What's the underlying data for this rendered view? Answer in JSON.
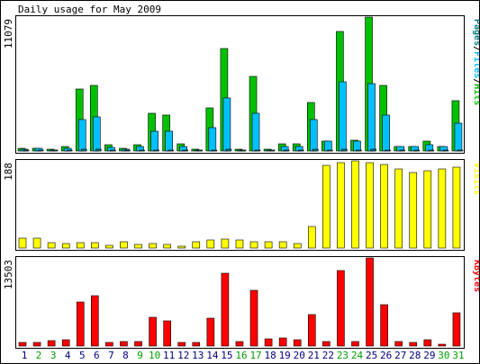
{
  "chart_data": {
    "type": "bar",
    "title": "Daily usage for May 2009",
    "categories": [
      "1",
      "2",
      "3",
      "4",
      "5",
      "6",
      "7",
      "8",
      "9",
      "10",
      "11",
      "12",
      "13",
      "14",
      "15",
      "16",
      "17",
      "18",
      "19",
      "20",
      "21",
      "22",
      "23",
      "24",
      "25",
      "26",
      "27",
      "28",
      "29",
      "30",
      "31"
    ],
    "weekend_days": [
      "2",
      "3",
      "9",
      "10",
      "16",
      "17",
      "23",
      "24",
      "30",
      "31"
    ],
    "colors": {
      "hits": "#00c000",
      "files": "#00c0ff",
      "pages": "#008080",
      "visits": "#ffff00",
      "kbytes": "#ff0000",
      "weekday_label": "#000080",
      "weekend_label": "#00a000",
      "frame": "#000000",
      "panel_border": "#000000"
    },
    "panels": [
      {
        "id": "hits",
        "label_parts": [
          {
            "text": "Pages",
            "color": "#008080"
          },
          {
            "text": "/",
            "color": "#000000"
          },
          {
            "text": "Files",
            "color": "#00c0ff"
          },
          {
            "text": "/",
            "color": "#000000"
          },
          {
            "text": "Hits",
            "color": "#00c000"
          }
        ],
        "max_label": "11079",
        "ylim": [
          0,
          11079
        ],
        "series": [
          {
            "name": "Hits",
            "color": "#00c000",
            "values": [
              200,
              250,
              120,
              400,
              5100,
              5400,
              550,
              250,
              550,
              3100,
              3000,
              600,
              120,
              3600,
              8500,
              150,
              6200,
              150,
              600,
              600,
              4000,
              850,
              9900,
              900,
              11079,
              5400,
              400,
              400,
              850,
              400,
              4200
            ]
          },
          {
            "name": "Files",
            "color": "#00c0ff",
            "values": [
              150,
              200,
              80,
              250,
              2600,
              2800,
              300,
              150,
              350,
              1600,
              1600,
              350,
              80,
              1900,
              4400,
              100,
              3100,
              100,
              350,
              350,
              2600,
              850,
              5700,
              850,
              5600,
              3000,
              400,
              400,
              550,
              400,
              2300
            ]
          },
          {
            "name": "Pages",
            "color": "#008080",
            "values": [
              50,
              60,
              30,
              60,
              120,
              130,
              80,
              40,
              60,
              100,
              90,
              70,
              30,
              90,
              150,
              40,
              110,
              40,
              80,
              70,
              120,
              80,
              150,
              90,
              160,
              110,
              80,
              80,
              90,
              80,
              110
            ]
          }
        ]
      },
      {
        "id": "visits",
        "label_parts": [
          {
            "text": "Visits",
            "color": "#ffff00"
          }
        ],
        "max_label": "188",
        "ylim": [
          0,
          188
        ],
        "series": [
          {
            "name": "Visits",
            "color": "#ffff00",
            "values": [
              22,
              22,
              12,
              10,
              12,
              12,
              6,
              14,
              7,
              10,
              7,
              4,
              14,
              17,
              20,
              17,
              14,
              14,
              13,
              10,
              47,
              178,
              184,
              188,
              184,
              180,
              170,
              163,
              166,
              170,
              175
            ]
          }
        ]
      },
      {
        "id": "kbytes",
        "label_parts": [
          {
            "text": "KBytes",
            "color": "#ff0000"
          }
        ],
        "max_label": "13503",
        "ylim": [
          0,
          13503
        ],
        "series": [
          {
            "name": "KBytes",
            "color": "#ff0000",
            "values": [
              500,
              500,
              800,
              1000,
              6700,
              7700,
              600,
              700,
              700,
              4400,
              3800,
              600,
              500,
              4300,
              11100,
              700,
              8600,
              1100,
              1200,
              1000,
              4800,
              700,
              11600,
              700,
              13503,
              6300,
              700,
              500,
              1000,
              300,
              5100
            ]
          }
        ]
      }
    ]
  }
}
